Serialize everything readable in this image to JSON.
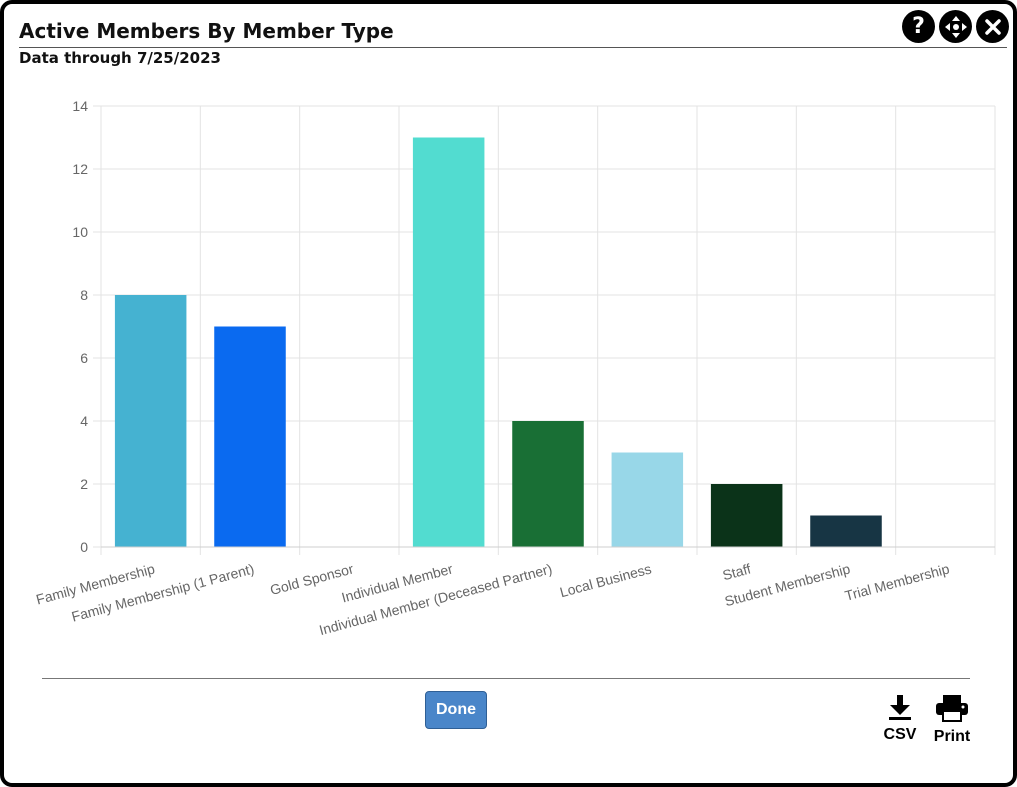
{
  "dialog": {
    "title": "Active Members By Member Type",
    "subtitle": "Data through 7/25/2023",
    "help_symbol": "?"
  },
  "icons": {
    "help": "question-circle-icon",
    "move": "move-arrows-icon",
    "close": "close-x-icon"
  },
  "footer": {
    "done_label": "Done",
    "csv_label": "CSV",
    "print_label": "Print"
  },
  "chart_data": {
    "type": "bar",
    "title": "",
    "xlabel": "",
    "ylabel": "",
    "ylim": [
      0,
      14
    ],
    "yticks": [
      0,
      2,
      4,
      6,
      8,
      10,
      12,
      14
    ],
    "grid": true,
    "categories": [
      "Family Membership",
      "Family Membership (1 Parent)",
      "Gold Sponsor",
      "Individual Member",
      "Individual Member (Deceased Partner)",
      "Local Business",
      "Staff",
      "Student Membership",
      "Trial Membership"
    ],
    "values": [
      8,
      7,
      0,
      13,
      4,
      3,
      2,
      1,
      0
    ],
    "colors": [
      "#45b2d1",
      "#0a6af0",
      "#cccccc",
      "#52dcd0",
      "#196f35",
      "#98d7e8",
      "#0b3319",
      "#173544",
      "#cccccc"
    ]
  }
}
